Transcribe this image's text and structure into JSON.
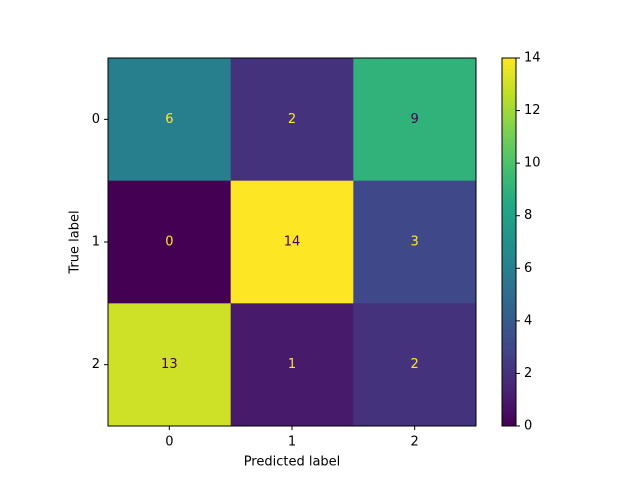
{
  "chart_data": {
    "type": "heatmap",
    "x_label": "Predicted label",
    "y_label": "True label",
    "x_categories": [
      "0",
      "1",
      "2"
    ],
    "y_categories": [
      "0",
      "1",
      "2"
    ],
    "z": [
      [
        6,
        2,
        9
      ],
      [
        0,
        14,
        3
      ],
      [
        13,
        1,
        2
      ]
    ],
    "colormap": "viridis",
    "colorbar_lim": [
      0,
      14
    ],
    "colorbar_ticks": [
      0,
      2,
      4,
      6,
      8,
      10,
      12,
      14
    ]
  }
}
